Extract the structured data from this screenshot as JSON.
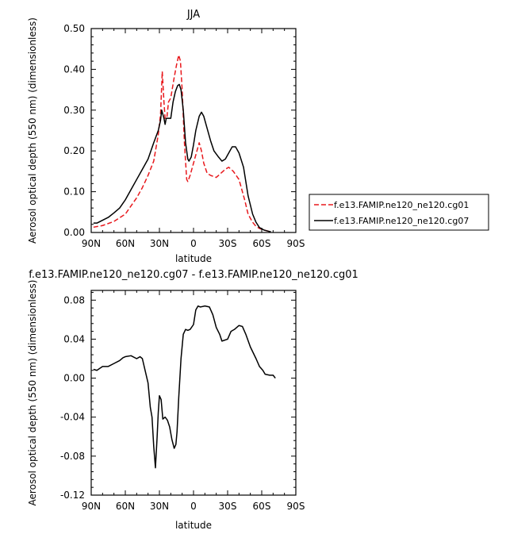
{
  "chart_data": [
    {
      "type": "line",
      "title": "JJA",
      "xlabel": "latitude",
      "ylabel": "Aerosol optical depth (550 nm) (dimensionless)",
      "xlim": [
        90,
        -90
      ],
      "ylim": [
        0,
        0.5
      ],
      "x_tick_values": [
        90,
        60,
        30,
        0,
        -30,
        -60,
        -90
      ],
      "x_tick_labels": [
        "90N",
        "60N",
        "30N",
        "0",
        "30S",
        "60S",
        "90S"
      ],
      "y_tick_values": [
        0,
        0.1,
        0.2,
        0.3,
        0.4,
        0.5
      ],
      "y_tick_labels": [
        "0.00",
        "0.10",
        "0.20",
        "0.30",
        "0.40",
        "0.50"
      ],
      "legend_position": "right",
      "series": [
        {
          "name": "f.e13.FAMIP.ne120_ne120.cg01",
          "color": "#e8191d",
          "dash": "dashed",
          "points": [
            [
              88,
              0.013
            ],
            [
              80,
              0.017
            ],
            [
              70,
              0.027
            ],
            [
              60,
              0.045
            ],
            [
              50,
              0.085
            ],
            [
              45,
              0.11
            ],
            [
              40,
              0.14
            ],
            [
              35,
              0.175
            ],
            [
              31,
              0.24
            ],
            [
              29,
              0.29
            ],
            [
              27.5,
              0.395
            ],
            [
              26,
              0.32
            ],
            [
              25,
              0.28
            ],
            [
              23.5,
              0.28
            ],
            [
              22,
              0.32
            ],
            [
              20,
              0.33
            ],
            [
              17,
              0.38
            ],
            [
              15,
              0.41
            ],
            [
              13,
              0.435
            ],
            [
              11.5,
              0.42
            ],
            [
              10,
              0.35
            ],
            [
              8,
              0.22
            ],
            [
              6,
              0.13
            ],
            [
              5,
              0.125
            ],
            [
              3,
              0.14
            ],
            [
              0,
              0.17
            ],
            [
              -3,
              0.2
            ],
            [
              -5,
              0.22
            ],
            [
              -7,
              0.2
            ],
            [
              -9,
              0.17
            ],
            [
              -12,
              0.145
            ],
            [
              -15,
              0.14
            ],
            [
              -20,
              0.135
            ],
            [
              -24,
              0.145
            ],
            [
              -28,
              0.155
            ],
            [
              -31,
              0.16
            ],
            [
              -35,
              0.15
            ],
            [
              -40,
              0.13
            ],
            [
              -45,
              0.08
            ],
            [
              -48,
              0.045
            ],
            [
              -52,
              0.025
            ],
            [
              -55,
              0.015
            ],
            [
              -58,
              0.01
            ],
            [
              -62,
              0.006
            ],
            [
              -66,
              0.003
            ],
            [
              -68,
              0.002
            ]
          ]
        },
        {
          "name": "f.e13.FAMIP.ne120_ne120.cg07",
          "color": "#000000",
          "dash": "solid",
          "points": [
            [
              88,
              0.023
            ],
            [
              85,
              0.023
            ],
            [
              80,
              0.03
            ],
            [
              75,
              0.037
            ],
            [
              70,
              0.048
            ],
            [
              65,
              0.06
            ],
            [
              60,
              0.08
            ],
            [
              55,
              0.105
            ],
            [
              50,
              0.13
            ],
            [
              45,
              0.155
            ],
            [
              40,
              0.18
            ],
            [
              35,
              0.22
            ],
            [
              31,
              0.25
            ],
            [
              29,
              0.275
            ],
            [
              28,
              0.3
            ],
            [
              26,
              0.28
            ],
            [
              25,
              0.265
            ],
            [
              24,
              0.28
            ],
            [
              22,
              0.28
            ],
            [
              20,
              0.28
            ],
            [
              18,
              0.32
            ],
            [
              16,
              0.345
            ],
            [
              14,
              0.36
            ],
            [
              12.5,
              0.363
            ],
            [
              11,
              0.35
            ],
            [
              9,
              0.3
            ],
            [
              7,
              0.22
            ],
            [
              5,
              0.18
            ],
            [
              4,
              0.175
            ],
            [
              2,
              0.185
            ],
            [
              0,
              0.215
            ],
            [
              -2,
              0.25
            ],
            [
              -5,
              0.285
            ],
            [
              -7,
              0.295
            ],
            [
              -9,
              0.285
            ],
            [
              -12,
              0.255
            ],
            [
              -15,
              0.225
            ],
            [
              -18,
              0.2
            ],
            [
              -22,
              0.185
            ],
            [
              -25,
              0.175
            ],
            [
              -28,
              0.18
            ],
            [
              -31,
              0.195
            ],
            [
              -34,
              0.21
            ],
            [
              -37,
              0.21
            ],
            [
              -40,
              0.195
            ],
            [
              -44,
              0.16
            ],
            [
              -48,
              0.09
            ],
            [
              -52,
              0.045
            ],
            [
              -55,
              0.025
            ],
            [
              -58,
              0.012
            ],
            [
              -62,
              0.006
            ],
            [
              -66,
              0.003
            ],
            [
              -68,
              0.002
            ]
          ]
        }
      ]
    },
    {
      "type": "line",
      "title": "f.e13.FAMIP.ne120_ne120.cg07 - f.e13.FAMIP.ne120_ne120.cg01",
      "xlabel": "latitude",
      "ylabel": "Aerosol optical depth (550 nm) (dimensionless)",
      "xlim": [
        90,
        -90
      ],
      "ylim": [
        -0.12,
        0.09
      ],
      "x_tick_values": [
        90,
        60,
        30,
        0,
        -30,
        -60,
        -90
      ],
      "x_tick_labels": [
        "90N",
        "60N",
        "30N",
        "0",
        "30S",
        "60S",
        "90S"
      ],
      "y_tick_values": [
        -0.12,
        -0.08,
        -0.04,
        0,
        0.04,
        0.08
      ],
      "y_tick_labels": [
        "-0.12",
        "-0.08",
        "-0.04",
        "0.00",
        "0.04",
        "0.08"
      ],
      "series": [
        {
          "color": "#000000",
          "dash": "solid",
          "points": [
            [
              88,
              0.009
            ],
            [
              85,
              0.008
            ],
            [
              80,
              0.012
            ],
            [
              75,
              0.012
            ],
            [
              70,
              0.015
            ],
            [
              65,
              0.018
            ],
            [
              62,
              0.021
            ],
            [
              60,
              0.022
            ],
            [
              55,
              0.023
            ],
            [
              50,
              0.02
            ],
            [
              47,
              0.022
            ],
            [
              45,
              0.02
            ],
            [
              43,
              0.01
            ],
            [
              40,
              -0.005
            ],
            [
              38,
              -0.03
            ],
            [
              36.5,
              -0.04
            ],
            [
              35,
              -0.07
            ],
            [
              33.5,
              -0.092
            ],
            [
              32,
              -0.06
            ],
            [
              31,
              -0.035
            ],
            [
              30,
              -0.018
            ],
            [
              28.5,
              -0.022
            ],
            [
              27,
              -0.042
            ],
            [
              25,
              -0.04
            ],
            [
              23,
              -0.043
            ],
            [
              21,
              -0.05
            ],
            [
              19,
              -0.063
            ],
            [
              17,
              -0.072
            ],
            [
              15.5,
              -0.068
            ],
            [
              14.5,
              -0.055
            ],
            [
              13,
              -0.02
            ],
            [
              11,
              0.02
            ],
            [
              9,
              0.045
            ],
            [
              7,
              0.05
            ],
            [
              5,
              0.049
            ],
            [
              3,
              0.05
            ],
            [
              0,
              0.055
            ],
            [
              -2,
              0.07
            ],
            [
              -4,
              0.074
            ],
            [
              -6,
              0.073
            ],
            [
              -10,
              0.074
            ],
            [
              -14,
              0.073
            ],
            [
              -17,
              0.065
            ],
            [
              -20,
              0.052
            ],
            [
              -23,
              0.045
            ],
            [
              -25,
              0.038
            ],
            [
              -30,
              0.04
            ],
            [
              -33,
              0.048
            ],
            [
              -36,
              0.05
            ],
            [
              -40,
              0.054
            ],
            [
              -43,
              0.053
            ],
            [
              -46,
              0.045
            ],
            [
              -50,
              0.032
            ],
            [
              -55,
              0.02
            ],
            [
              -58,
              0.012
            ],
            [
              -61,
              0.008
            ],
            [
              -63,
              0.004
            ],
            [
              -67,
              0.003
            ],
            [
              -70,
              0.003
            ],
            [
              -72,
              0.0
            ]
          ]
        }
      ]
    }
  ]
}
